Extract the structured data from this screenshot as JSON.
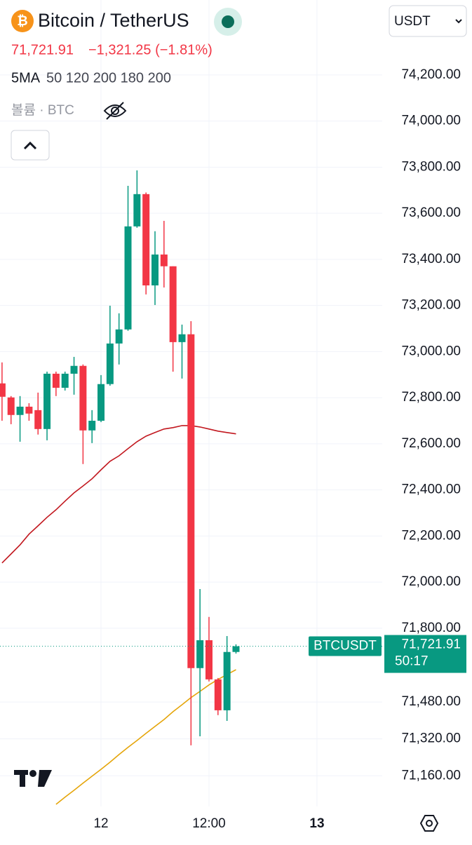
{
  "chart_data": {
    "type": "candlestick",
    "title": "Bitcoin / TetherUS",
    "change": "−1,321.25 (−1.81%)",
    "indicator": "5MA",
    "indicator_params": "50 120 200 180 200",
    "volume_label": "볼륨 · BTC",
    "currency": "USDT",
    "symbol": "BTCUSDT",
    "countdown": "50:17",
    "last_price": {
      "value": 71721.91,
      "label": "71,721.91"
    },
    "up_color": "#089981",
    "down_color": "#f23645",
    "categories": [
      null,
      null,
      null,
      null,
      null,
      null,
      null,
      null,
      null,
      null,
      null,
      "12",
      null,
      null,
      null,
      null,
      null,
      null,
      null,
      null,
      null,
      null,
      null,
      "12:00",
      null,
      null,
      null,
      null,
      null,
      null,
      null,
      null,
      null,
      null,
      null,
      "13"
    ],
    "open": [
      72862,
      72801,
      72725,
      72761,
      72746,
      72664,
      72904,
      72843,
      72904,
      72938,
      72658,
      72700,
      72859,
      73035,
      73096,
      73543,
      73683,
      73287,
      73421,
      73370,
      73041,
      73075,
      71627,
      71748,
      71578,
      71444,
      71697,
      null,
      null,
      null,
      null,
      null,
      null,
      null,
      null,
      null
    ],
    "high": [
      72953,
      72807,
      72807,
      72776,
      72822,
      72913,
      72913,
      72913,
      72977,
      72944,
      72746,
      72898,
      73199,
      73166,
      73719,
      73786,
      73690,
      73522,
      73567,
      73370,
      73117,
      73132,
      71970,
      71849,
      71584,
      71766,
      71730,
      null,
      null,
      null,
      null,
      null,
      null,
      null,
      null,
      null
    ],
    "low": [
      72700,
      72685,
      72609,
      72700,
      72640,
      72615,
      72807,
      72831,
      72813,
      72512,
      72603,
      72694,
      72852,
      72944,
      73090,
      73537,
      73248,
      73202,
      73278,
      72913,
      72883,
      71292,
      71331,
      71569,
      71423,
      71398,
      71690,
      null,
      null,
      null,
      null,
      null,
      null,
      null,
      null,
      null
    ],
    "close": [
      72804,
      72725,
      72761,
      72731,
      72664,
      72904,
      72843,
      72904,
      72938,
      72658,
      72700,
      72859,
      73035,
      73096,
      73543,
      73683,
      73287,
      73421,
      73370,
      73041,
      73075,
      71627,
      71748,
      71578,
      71444,
      71697,
      71721.91,
      null,
      null,
      null,
      null,
      null,
      null,
      null,
      null,
      null
    ],
    "overlays": [
      {
        "color": "#c2181f",
        "values": [
          72083,
          72122,
          72162,
          72208,
          72244,
          72281,
          72314,
          72351,
          72387,
          72417,
          72448,
          72487,
          72524,
          72548,
          72579,
          72609,
          72633,
          72649,
          72664,
          72670,
          72679,
          72679,
          72673,
          72664,
          72655,
          72649,
          72643,
          null,
          null,
          null,
          null,
          null,
          null,
          null,
          null,
          null
        ]
      },
      {
        "color": "#e5a50a",
        "values": [
          null,
          null,
          null,
          null,
          null,
          null,
          71036,
          71067,
          71097,
          71128,
          71158,
          71188,
          71219,
          71252,
          71283,
          71313,
          71344,
          71374,
          71404,
          71438,
          71468,
          71499,
          71526,
          71554,
          71578,
          71599,
          71620,
          null,
          null,
          null,
          null,
          null,
          null,
          null,
          null,
          null
        ]
      }
    ],
    "ylim": [
      71027,
      74525
    ],
    "yticks": [
      {
        "value": 74200,
        "label": "74,200.00"
      },
      {
        "value": 74000,
        "label": "74,000.00"
      },
      {
        "value": 73800,
        "label": "73,800.00"
      },
      {
        "value": 73600,
        "label": "73,600.00"
      },
      {
        "value": 73400,
        "label": "73,400.00"
      },
      {
        "value": 73200,
        "label": "73,200.00"
      },
      {
        "value": 73000,
        "label": "73,000.00"
      },
      {
        "value": 72800,
        "label": "72,800.00"
      },
      {
        "value": 72600,
        "label": "72,600.00"
      },
      {
        "value": 72400,
        "label": "72,400.00"
      },
      {
        "value": 72200,
        "label": "72,200.00"
      },
      {
        "value": 72000,
        "label": "72,000.00"
      },
      {
        "value": 71800,
        "label": "71,800.00"
      },
      {
        "value": 71480,
        "label": "71,480.00"
      },
      {
        "value": 71320,
        "label": "71,320.00"
      },
      {
        "value": 71160,
        "label": "71,160.00"
      }
    ],
    "grid": true
  }
}
